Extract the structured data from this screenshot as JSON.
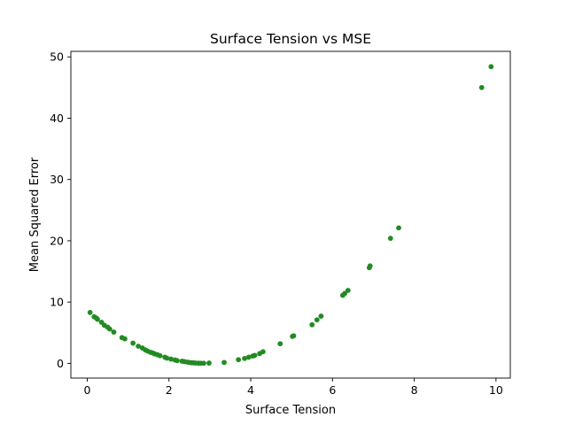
{
  "chart_data": {
    "type": "scatter",
    "title": "Surface Tension vs MSE",
    "xlabel": "Surface Tension",
    "ylabel": "Mean Squared Error",
    "xlim": [
      -0.4,
      10.35
    ],
    "ylim": [
      -2.4,
      50.9
    ],
    "xticks": [
      0,
      2,
      4,
      6,
      8,
      10
    ],
    "yticks": [
      0,
      10,
      20,
      30,
      40,
      50
    ],
    "xtick_labels": [
      "0",
      "2",
      "4",
      "6",
      "8",
      "10"
    ],
    "ytick_labels": [
      "0",
      "10",
      "20",
      "30",
      "40",
      "50"
    ],
    "grid": false,
    "marker_color": "#228b22",
    "x": [
      0.07,
      0.17,
      0.22,
      0.25,
      0.35,
      0.42,
      0.5,
      0.55,
      0.65,
      0.85,
      0.92,
      1.12,
      1.25,
      1.35,
      1.42,
      1.48,
      1.55,
      1.6,
      1.65,
      1.72,
      1.78,
      1.9,
      1.95,
      2.05,
      2.15,
      2.2,
      2.32,
      2.38,
      2.45,
      2.5,
      2.55,
      2.6,
      2.65,
      2.72,
      2.78,
      2.85,
      2.98,
      3.35,
      3.7,
      3.85,
      3.95,
      4.05,
      4.1,
      4.22,
      4.3,
      4.72,
      5.02,
      5.05,
      5.5,
      5.62,
      5.72,
      6.25,
      6.3,
      6.38,
      6.9,
      6.92,
      7.42,
      7.62,
      9.65,
      9.88
    ],
    "y": [
      8.3,
      7.6,
      7.4,
      7.2,
      6.7,
      6.2,
      5.9,
      5.6,
      5.1,
      4.2,
      4.0,
      3.3,
      2.8,
      2.5,
      2.2,
      2.0,
      1.8,
      1.7,
      1.55,
      1.4,
      1.25,
      1.0,
      0.85,
      0.7,
      0.55,
      0.45,
      0.35,
      0.28,
      0.2,
      0.15,
      0.1,
      0.08,
      0.05,
      0.03,
      0.02,
      0.02,
      0.05,
      0.15,
      0.6,
      0.8,
      1.0,
      1.2,
      1.3,
      1.6,
      1.9,
      3.2,
      4.4,
      4.5,
      6.3,
      7.1,
      7.7,
      11.1,
      11.4,
      11.9,
      15.6,
      15.9,
      20.4,
      22.1,
      45.0,
      48.4
    ]
  }
}
